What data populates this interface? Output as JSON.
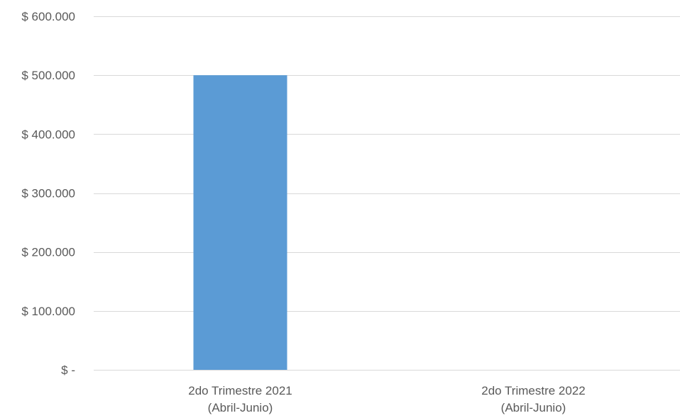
{
  "chart_data": {
    "type": "bar",
    "title": "",
    "xlabel": "",
    "ylabel": "",
    "categories": [
      [
        "2do Trimestre 2021",
        "(Abril-Junio)"
      ],
      [
        "2do Trimestre 2022",
        "(Abril-Junio)"
      ]
    ],
    "values": [
      500000,
      0
    ],
    "ylim": [
      0,
      600000
    ],
    "yticks": [
      0,
      100000,
      200000,
      300000,
      400000,
      500000,
      600000
    ],
    "ytick_labels": [
      "$ -",
      "$ 100.000",
      "$ 200.000",
      "$ 300.000",
      "$ 400.000",
      "$ 500.000",
      "$ 600.000"
    ],
    "grid": true,
    "legend": "none",
    "bar_color": "#5b9bd5"
  }
}
